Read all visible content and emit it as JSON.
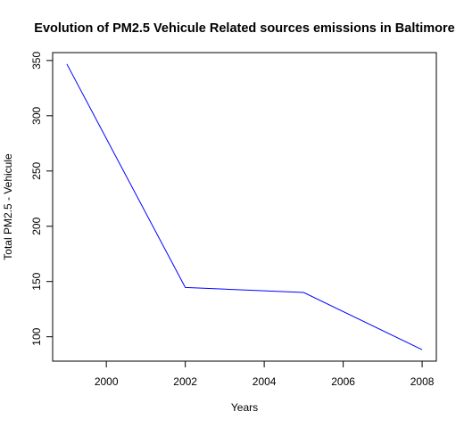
{
  "chart_data": {
    "type": "line",
    "title": "Evolution of PM2.5 Vehicule Related sources emissions in Baltimore",
    "xlabel": "Years",
    "ylabel": "Total PM2.5 - Vehicule",
    "x": [
      1999,
      2002,
      2005,
      2008
    ],
    "series": [
      {
        "values": [
          346.8,
          144.6,
          140.1,
          88.3
        ],
        "color": "#0000ff"
      }
    ],
    "xticks": [
      2000,
      2002,
      2004,
      2006,
      2008
    ],
    "yticks": [
      100,
      150,
      200,
      250,
      300,
      350
    ],
    "xlim": [
      1998.64,
      2008.36
    ],
    "ylim": [
      77.96,
      357.14
    ],
    "grid": false,
    "legend": "none"
  }
}
